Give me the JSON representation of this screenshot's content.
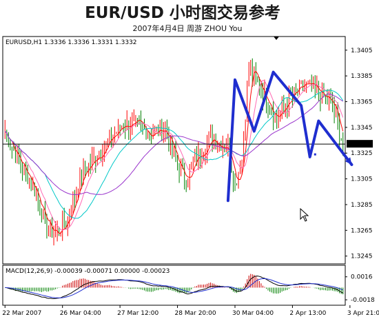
{
  "header": {
    "title": "EUR/USD 小时图交易参考",
    "subtitle": "2007年4月4日    周游 ZHOU You"
  },
  "chart_data": {
    "type": "candlestick",
    "timeframe": "H1",
    "symbol_label": "EURUSD,H1  1.3336 1.3336 1.3331 1.3332",
    "ylim": [
      1.324,
      1.3414
    ],
    "y_ticks": [
      "1.3405",
      "1.3385",
      "1.3365",
      "1.3345",
      "1.3325",
      "1.3305",
      "1.3285",
      "1.3265",
      "1.3245"
    ],
    "y_tick_values": [
      1.3405,
      1.3385,
      1.3365,
      1.3345,
      1.3325,
      1.3305,
      1.3285,
      1.3265,
      1.3245
    ],
    "current_price": "1.3332",
    "current_price_value": 1.3332,
    "x_ticks": [
      "22 Mar 2007",
      "26 Mar 04:00",
      "27 Mar 12:00",
      "28 Mar 20:00",
      "30 Mar 04:00",
      "2 Apr 13:00",
      "3 Apr 21:00"
    ],
    "x_tick_index": [
      0,
      33,
      66,
      99,
      132,
      165,
      198
    ],
    "bar_count": 195,
    "price_path": [
      [
        0,
        1.3342
      ],
      [
        8,
        1.3318
      ],
      [
        16,
        1.33
      ],
      [
        24,
        1.3268
      ],
      [
        30,
        1.3262
      ],
      [
        36,
        1.3274
      ],
      [
        44,
        1.3308
      ],
      [
        52,
        1.3322
      ],
      [
        60,
        1.3335
      ],
      [
        68,
        1.3348
      ],
      [
        76,
        1.3346
      ],
      [
        84,
        1.334
      ],
      [
        92,
        1.3344
      ],
      [
        98,
        1.3318
      ],
      [
        104,
        1.3304
      ],
      [
        110,
        1.3322
      ],
      [
        118,
        1.3336
      ],
      [
        124,
        1.3332
      ],
      [
        128,
        1.333
      ],
      [
        132,
        1.33
      ],
      [
        136,
        1.332
      ],
      [
        140,
        1.3392
      ],
      [
        148,
        1.3372
      ],
      [
        156,
        1.3352
      ],
      [
        164,
        1.3368
      ],
      [
        172,
        1.3378
      ],
      [
        180,
        1.3372
      ],
      [
        188,
        1.3362
      ],
      [
        194,
        1.3332
      ]
    ],
    "moving_averages": [
      {
        "color": "#ff0000",
        "period": 5
      },
      {
        "color": "#ff69b4",
        "period": 10
      },
      {
        "color": "#00c8c8",
        "period": 24
      },
      {
        "color": "#9933cc",
        "period": 48
      }
    ],
    "candle_colors": {
      "up": "#ff0000",
      "down": "#008000"
    },
    "annotation_path": [
      [
        1.3288,
        128
      ],
      [
        1.3382,
        132
      ],
      [
        1.3342,
        143
      ],
      [
        1.3388,
        154
      ],
      [
        1.3362,
        170
      ],
      [
        1.3322,
        175
      ],
      [
        1.335,
        180
      ],
      [
        1.3316,
        199
      ]
    ],
    "annotation_color": "#1f2ecf",
    "annotation_marker": {
      "index": 178,
      "value": 1.3324
    },
    "macd": {
      "label": "MACD(12,26,9) -0.00039 -0.00071 0.00000 -0.00023",
      "y_ticks": [
        "0.0016",
        "-0.0018"
      ],
      "y_tick_values": [
        0.0016,
        -0.0018
      ],
      "ylim": [
        -0.0024,
        0.003
      ]
    }
  },
  "cursor": {
    "icon": "mouse-pointer-icon"
  }
}
